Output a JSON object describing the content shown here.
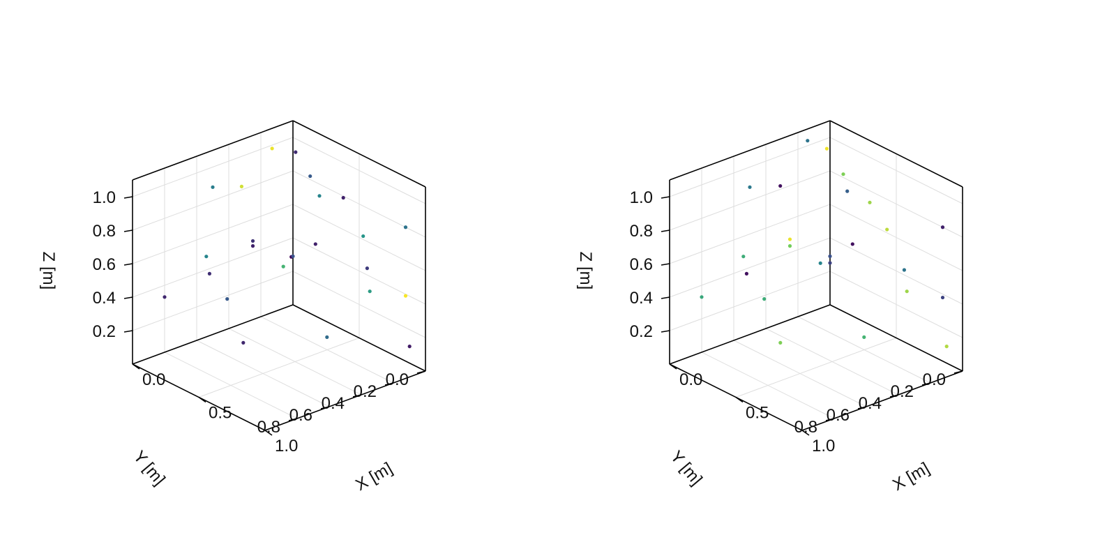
{
  "chart_data": [
    {
      "type": "scatter",
      "axes": {
        "x": {
          "label": "X [m]",
          "ticks": [
            "0.0",
            "0.5",
            "1.0"
          ]
        },
        "y": {
          "label": "Y [m]",
          "ticks": [
            "0.0",
            "0.2",
            "0.4",
            "0.6",
            "0.8"
          ]
        },
        "z": {
          "label": "Z [m]",
          "ticks": [
            "0.2",
            "0.4",
            "0.6",
            "0.8",
            "1.0"
          ]
        }
      },
      "grid": true,
      "colormap": "viridis",
      "colors": {
        "grid": "#dddddd",
        "edge": "#000000"
      },
      "points": [
        {
          "x": 0.0,
          "y": 0.13,
          "z": 0.98,
          "c": 0.97
        },
        {
          "x": 0.0,
          "y": 0.5,
          "z": 0.88,
          "c": 0.42
        },
        {
          "x": 0.0,
          "y": 0.32,
          "z": 0.82,
          "c": 0.93
        },
        {
          "x": 0.0,
          "y": 0.54,
          "z": 0.48,
          "c": 0.45
        },
        {
          "x": 0.0,
          "y": 0.25,
          "z": 0.47,
          "c": 0.15
        },
        {
          "x": 0.0,
          "y": 0.25,
          "z": 0.44,
          "c": 0.1
        },
        {
          "x": 0.0,
          "y": 0.52,
          "z": 0.37,
          "c": 0.14
        },
        {
          "x": 0.0,
          "y": 0.8,
          "z": 0.33,
          "c": 0.12
        },
        {
          "x": 0.0,
          "y": 0.41,
          "z": 0.18,
          "c": 0.28
        },
        {
          "x": 0.0,
          "y": 0.06,
          "z": 0.25,
          "c": 0.65
        },
        {
          "x": 0.0,
          "y": 0.01,
          "z": 0.29,
          "c": 0.02
        },
        {
          "x": 0.02,
          "y": 0.0,
          "z": 0.92,
          "c": 0.13
        },
        {
          "x": 0.13,
          "y": 0.0,
          "z": 0.82,
          "c": 0.28
        },
        {
          "x": 0.2,
          "y": 0.0,
          "z": 0.73,
          "c": 0.45
        },
        {
          "x": 0.38,
          "y": 0.0,
          "z": 0.79,
          "c": 0.1
        },
        {
          "x": 0.53,
          "y": 0.0,
          "z": 0.62,
          "c": 0.52
        },
        {
          "x": 0.17,
          "y": 0.0,
          "z": 0.43,
          "c": 0.1
        },
        {
          "x": 0.56,
          "y": 0.0,
          "z": 0.44,
          "c": 0.18
        },
        {
          "x": 0.58,
          "y": 0.0,
          "z": 0.31,
          "c": 0.55
        },
        {
          "x": 0.85,
          "y": 0.0,
          "z": 0.8,
          "c": 0.38
        },
        {
          "x": 0.85,
          "y": 0.0,
          "z": 0.39,
          "c": 0.99
        },
        {
          "x": 0.88,
          "y": 0.0,
          "z": 0.1,
          "c": 0.08
        },
        {
          "x": 0.0,
          "y": 0.0,
          "z": 0.29,
          "c": 0.25
        },
        {
          "x": 0.39,
          "y": 0.11,
          "z": 0.0,
          "c": 0.35
        },
        {
          "x": 0.17,
          "y": 0.45,
          "z": 0.0,
          "c": 0.12
        }
      ]
    },
    {
      "type": "scatter",
      "axes": {
        "x": {
          "label": "X [m]",
          "ticks": [
            "0.0",
            "0.5",
            "1.0"
          ]
        },
        "y": {
          "label": "Y [m]",
          "ticks": [
            "0.0",
            "0.2",
            "0.4",
            "0.6",
            "0.8"
          ]
        },
        "z": {
          "label": "Z [m]",
          "ticks": [
            "0.2",
            "0.4",
            "0.6",
            "0.8",
            "1.0"
          ]
        }
      },
      "grid": true,
      "colormap": "viridis",
      "colors": {
        "grid": "#dddddd",
        "edge": "#000000"
      },
      "points": [
        {
          "x": 0.0,
          "y": 0.14,
          "z": 1.03,
          "c": 0.38
        },
        {
          "x": 0.0,
          "y": 0.5,
          "z": 0.88,
          "c": 0.4
        },
        {
          "x": 0.0,
          "y": 0.31,
          "z": 0.82,
          "c": 0.05
        },
        {
          "x": 0.0,
          "y": 0.54,
          "z": 0.48,
          "c": 0.62
        },
        {
          "x": 0.0,
          "y": 0.25,
          "z": 0.48,
          "c": 0.97
        },
        {
          "x": 0.0,
          "y": 0.25,
          "z": 0.44,
          "c": 0.78
        },
        {
          "x": 0.0,
          "y": 0.52,
          "z": 0.37,
          "c": 0.05
        },
        {
          "x": 0.0,
          "y": 0.8,
          "z": 0.33,
          "c": 0.6
        },
        {
          "x": 0.0,
          "y": 0.41,
          "z": 0.18,
          "c": 0.62
        },
        {
          "x": 0.0,
          "y": 0.06,
          "z": 0.27,
          "c": 0.45
        },
        {
          "x": 0.0,
          "y": 0.0,
          "z": 0.29,
          "c": 0.25
        },
        {
          "x": 0.0,
          "y": 0.02,
          "z": 0.94,
          "c": 0.98
        },
        {
          "x": 0.1,
          "y": 0.0,
          "z": 0.82,
          "c": 0.8
        },
        {
          "x": 0.13,
          "y": 0.0,
          "z": 0.73,
          "c": 0.3
        },
        {
          "x": 0.3,
          "y": 0.0,
          "z": 0.73,
          "c": 0.85
        },
        {
          "x": 0.43,
          "y": 0.0,
          "z": 0.62,
          "c": 0.9
        },
        {
          "x": 0.17,
          "y": 0.0,
          "z": 0.43,
          "c": 0.05
        },
        {
          "x": 0.56,
          "y": 0.0,
          "z": 0.43,
          "c": 0.38
        },
        {
          "x": 0.58,
          "y": 0.0,
          "z": 0.31,
          "c": 0.85
        },
        {
          "x": 0.85,
          "y": 0.0,
          "z": 0.8,
          "c": 0.1
        },
        {
          "x": 0.85,
          "y": 0.0,
          "z": 0.38,
          "c": 0.2
        },
        {
          "x": 0.88,
          "y": 0.0,
          "z": 0.1,
          "c": 0.88
        },
        {
          "x": 0.0,
          "y": 0.0,
          "z": 0.25,
          "c": 0.2
        },
        {
          "x": 0.39,
          "y": 0.11,
          "z": 0.0,
          "c": 0.65
        },
        {
          "x": 0.17,
          "y": 0.45,
          "z": 0.0,
          "c": 0.8
        }
      ]
    }
  ]
}
